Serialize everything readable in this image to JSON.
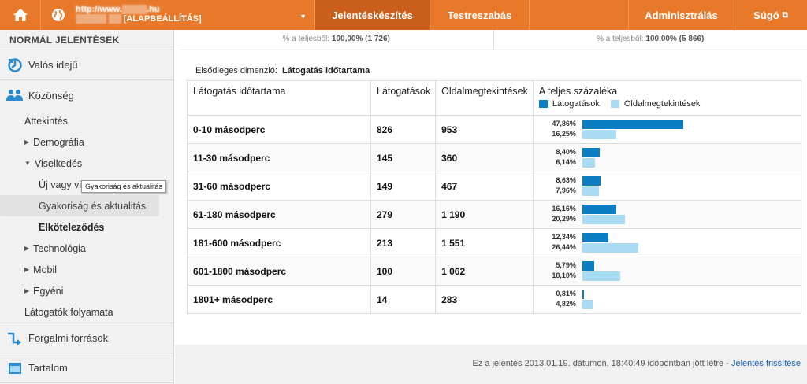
{
  "topbar": {
    "account_line1": "http://www.▒▒▒▒.hu",
    "account_line2": "[ALAPBEÁLLÍTÁS]",
    "account_line2_prefix": "▒▒▒▒▒ ▒▒",
    "nav": [
      {
        "label": "Jelentéskészítés",
        "active": true
      },
      {
        "label": "Testreszabás",
        "active": false
      }
    ],
    "admin": "Adminisztrálás",
    "help": "Súgó"
  },
  "sidebar": {
    "header": "NORMÁL JELENTÉSEK",
    "realtime": "Valós idejű",
    "audience": "Közönség",
    "items": {
      "overview": "Áttekintés",
      "demography": "Demográfia",
      "behavior": "Viselkedés",
      "new_returning": "Új vagy visszatérő",
      "frequency": "Gyakoriság és aktualitás",
      "engagement": "Elköteleződés",
      "technology": "Technológia",
      "mobile": "Mobil",
      "custom": "Egyéni",
      "visitor_flow": "Látogatók folyamata"
    },
    "traffic": "Forgalmi források",
    "content": "Tartalom",
    "tooltip": "Gyakoriság és aktualitás"
  },
  "stats": {
    "left_prefix": "% a teljesből:",
    "left_value": "100,00% (1 726)",
    "right_prefix": "% a teljesből:",
    "right_value": "100,00% (5 866)"
  },
  "dimension": {
    "label": "Elsődleges dimenzió:",
    "value": "Látogatás időtartama"
  },
  "table": {
    "headers": {
      "duration": "Látogatás időtartama",
      "visits": "Látogatások",
      "pageviews": "Oldalmegtekintések",
      "share": "A teljes százaléka"
    },
    "legend": {
      "visits": "Látogatások",
      "pageviews": "Oldalmegtekintések",
      "visits_color": "#0b7ec3",
      "pageviews_color": "#a9dcf3"
    },
    "rows": [
      {
        "duration": "0-10 másodperc",
        "visits": "826",
        "pageviews": "953",
        "pct_visits": "47,86%",
        "pct_pageviews": "16,25%",
        "v": 47.86,
        "p": 16.25
      },
      {
        "duration": "11-30 másodperc",
        "visits": "145",
        "pageviews": "360",
        "pct_visits": "8,40%",
        "pct_pageviews": "6,14%",
        "v": 8.4,
        "p": 6.14
      },
      {
        "duration": "31-60 másodperc",
        "visits": "149",
        "pageviews": "467",
        "pct_visits": "8,63%",
        "pct_pageviews": "7,96%",
        "v": 8.63,
        "p": 7.96
      },
      {
        "duration": "61-180 másodperc",
        "visits": "279",
        "pageviews": "1 190",
        "pct_visits": "16,16%",
        "pct_pageviews": "20,29%",
        "v": 16.16,
        "p": 20.29
      },
      {
        "duration": "181-600 másodperc",
        "visits": "213",
        "pageviews": "1 551",
        "pct_visits": "12,34%",
        "pct_pageviews": "26,44%",
        "v": 12.34,
        "p": 26.44
      },
      {
        "duration": "601-1800 másodperc",
        "visits": "100",
        "pageviews": "1 062",
        "pct_visits": "5,79%",
        "pct_pageviews": "18,10%",
        "v": 5.79,
        "p": 18.1
      },
      {
        "duration": "1801+ másodperc",
        "visits": "14",
        "pageviews": "283",
        "pct_visits": "0,81%",
        "pct_pageviews": "4,82%",
        "v": 0.81,
        "p": 4.82
      }
    ]
  },
  "footer": {
    "text": "Ez a jelentés 2013.01.19. dátumon, 18:40:49 időpontban jött létre -",
    "link": "Jelentés frissítése"
  }
}
